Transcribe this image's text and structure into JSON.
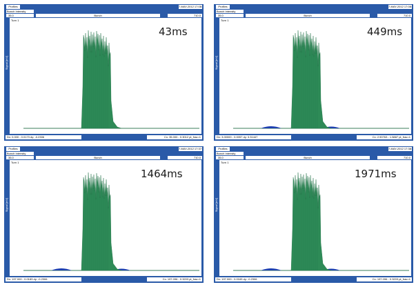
{
  "colors": {
    "frame": "#2a5aa8",
    "peak": "#2e8b57",
    "peak_edge": "#1f6f45",
    "baseline": "#3a7d5a",
    "side_bump": "#1d3fb0"
  },
  "panels": [
    {
      "tab": "Profiles",
      "stamp": "7-MAY-2012 17:08:17",
      "section": "Bunch Intensity",
      "vmin": "35.0",
      "bar_label": "Bunch",
      "vmax": "710.0",
      "tune": "Turn 1",
      "ylabel": "Signal [mV]",
      "timing": "43ms",
      "status_left": "Dx: 0.000 - 0.0173 dy: -0.2306",
      "status_right": "Cx: 35.000 - 0.3012 pt_frac=1",
      "side_bumps": false
    },
    {
      "tab": "Profiles",
      "stamp": "7-MAY-2012 17:08:17",
      "section": "Bunch Intensity",
      "vmin": "35.0",
      "bar_label": "Bunch",
      "vmax": "710.0",
      "tune": "Turn 1",
      "ylabel": "Signal [mV]",
      "timing": "449ms",
      "status_left": "Dx: 3.00000 - 0.0057 dy: 3.31447",
      "status_right": "Cx: 2.90763 - 1.5887 pt_frac=1",
      "side_bumps": true
    },
    {
      "tab": "Profiles",
      "stamp": "7-MAY-2012 17:37:48",
      "section": "Bunch Intensity",
      "vmin": "35.0",
      "bar_label": "Bunch",
      "vmax": "710.0",
      "tune": "Turn 1",
      "ylabel": "Signal [mV]",
      "timing": "1464ms",
      "status_left": "Dx: 197.000 - 0.0183 dy: -0.2306",
      "status_right": "Cx: 197.096 - 0.3203 pt_frac=1",
      "side_bumps": true
    },
    {
      "tab": "Profiles",
      "stamp": "7-MAY-2012 17:38:17",
      "section": "Bunch Intensity",
      "vmin": "35.0",
      "bar_label": "Bunch",
      "vmax": "710.0",
      "tune": "Turn 1",
      "ylabel": "Signal [mV]",
      "timing": "1971ms",
      "status_left": "Dx: 197.000 - 0.0183 dy: -0.2306",
      "status_right": "Cx: 197.096 - 0.3203 pt_frac=1",
      "side_bumps": true
    }
  ]
}
